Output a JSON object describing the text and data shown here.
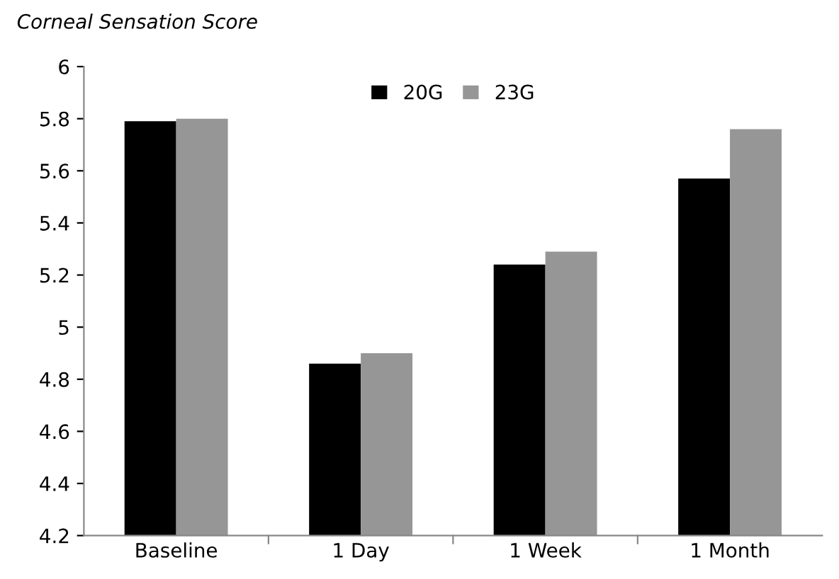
{
  "chart_data": {
    "type": "bar",
    "ylabel": "Corneal Sensation Score",
    "categories": [
      "Baseline",
      "1 Day",
      "1 Week",
      "1 Month"
    ],
    "series": [
      {
        "name": "20G",
        "color": "#000000",
        "values": [
          5.79,
          4.86,
          5.24,
          5.57
        ]
      },
      {
        "name": "23G",
        "color": "#969696",
        "values": [
          5.8,
          4.9,
          5.29,
          5.76
        ]
      }
    ],
    "ylim": [
      4.2,
      6
    ],
    "yticks": [
      4.2,
      4.4,
      4.6,
      4.8,
      5,
      5.2,
      5.4,
      5.6,
      5.8,
      6
    ],
    "grid": false,
    "legend": "top"
  }
}
